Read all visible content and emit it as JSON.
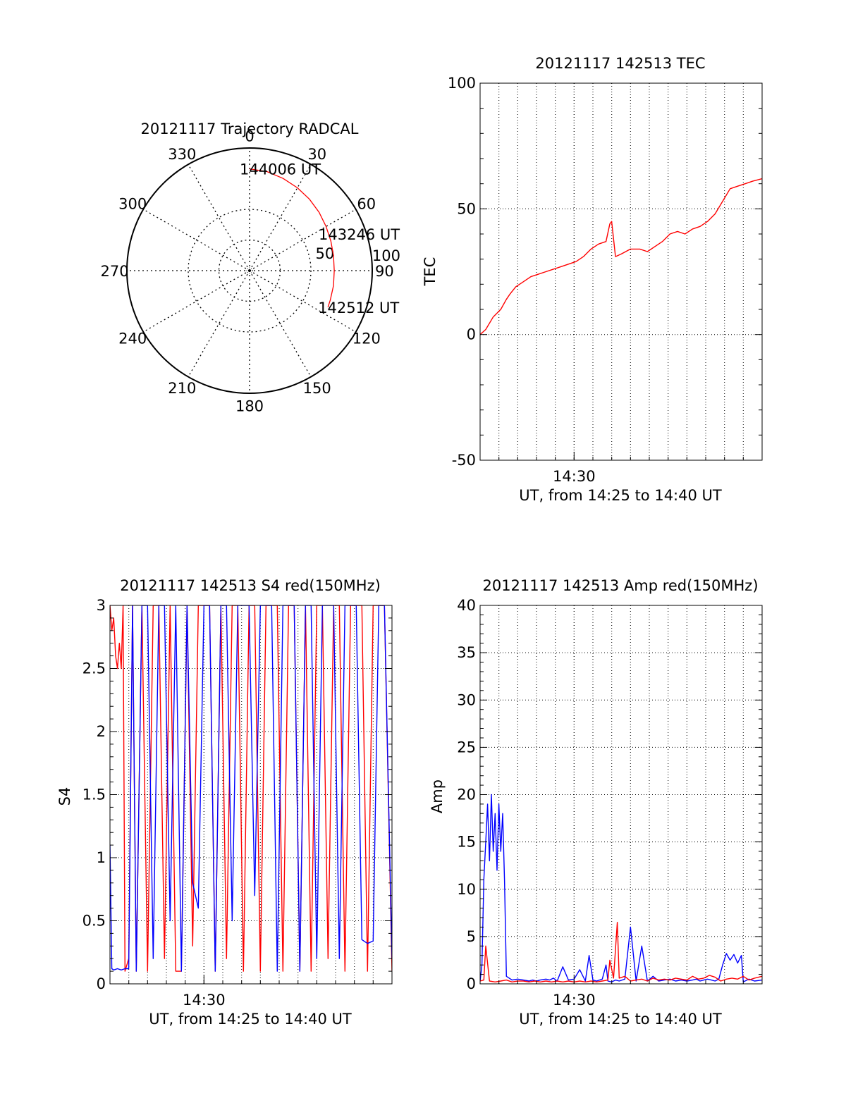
{
  "colors": {
    "primary": "#ff0000",
    "secondary": "#0000ff",
    "axis": "#000000",
    "grid": "#000000"
  },
  "chart_data": [
    {
      "type": "polar",
      "title": "20121117 Trajectory RADCAL",
      "angle_labels": [
        "0",
        "30",
        "60",
        "90",
        "120",
        "150",
        "180",
        "210",
        "240",
        "270",
        "300",
        "330"
      ],
      "radial_ticks": [
        {
          "value": 50,
          "label": "50"
        },
        {
          "value": 100,
          "label": "100"
        }
      ],
      "rlim": [
        0,
        100
      ],
      "trajectory": {
        "color": "#ff0000",
        "azimuth": [
          0,
          10,
          20,
          30,
          40,
          50,
          60,
          70,
          80,
          90,
          100,
          110,
          115
        ],
        "radius": [
          83,
          82,
          80,
          78,
          76,
          74,
          72,
          70.5,
          69.5,
          69,
          69.5,
          70,
          70.5
        ]
      },
      "time_labels": [
        {
          "text": "144006 UT",
          "azimuth": 0,
          "radius": 83
        },
        {
          "text": "143246 UT",
          "azimuth": 65,
          "radius": 71
        },
        {
          "text": "142512 UT",
          "azimuth": 115,
          "radius": 70.5
        }
      ]
    },
    {
      "type": "line",
      "title": "20121117 142513 TEC",
      "xlabel": "UT, from 14:25 to 14:40 UT",
      "ylabel": "TEC",
      "xlim": [
        14.4167,
        14.6667
      ],
      "ylim": [
        -50,
        100
      ],
      "yticks": [
        -50,
        0,
        50,
        100
      ],
      "xticks": [
        {
          "value": 14.5,
          "label": "14:30"
        }
      ],
      "grid": true,
      "series": [
        {
          "color": "#ff0000",
          "x": [
            14.4167,
            14.4217,
            14.4283,
            14.435,
            14.44,
            14.443,
            14.4483,
            14.455,
            14.4617,
            14.4683,
            14.475,
            14.4817,
            14.4883,
            14.495,
            14.5017,
            14.5083,
            14.515,
            14.5217,
            14.5283,
            14.5317,
            14.5333,
            14.5367,
            14.5417,
            14.55,
            14.5583,
            14.565,
            14.5717,
            14.5783,
            14.585,
            14.5917,
            14.5983,
            14.605,
            14.6117,
            14.6183,
            14.625,
            14.6317,
            14.6383,
            14.645,
            14.6517,
            14.6583,
            14.6667
          ],
          "y": [
            0,
            2,
            7,
            10,
            14,
            16,
            19,
            21,
            23,
            24,
            25,
            26,
            27,
            28,
            29,
            31,
            34,
            36,
            37,
            44,
            45,
            31,
            32,
            34,
            34,
            33,
            35,
            37,
            40,
            41,
            40,
            42,
            43,
            45,
            48,
            53,
            58,
            59,
            60,
            61,
            62
          ]
        }
      ]
    },
    {
      "type": "line",
      "title": "20121117 142513 S4 red(150MHz)",
      "xlabel": "UT, from 14:25 to 14:40 UT",
      "ylabel": "S4",
      "xlim": [
        14.4167,
        14.6667
      ],
      "ylim": [
        0,
        3
      ],
      "yticks": [
        0,
        0.5,
        1,
        1.5,
        2,
        2.5,
        3
      ],
      "xticks": [
        {
          "value": 14.5,
          "label": "14:30"
        }
      ],
      "grid": true,
      "series": [
        {
          "color": "#ff0000",
          "x": [
            14.4167,
            14.4183,
            14.42,
            14.4217,
            14.4233,
            14.425,
            14.4267,
            14.4283,
            14.43,
            14.4333,
            14.4367,
            14.44,
            14.445,
            14.45,
            14.455,
            14.46,
            14.465,
            14.47,
            14.475,
            14.48,
            14.485,
            14.49,
            14.495,
            14.5,
            14.505,
            14.51,
            14.515,
            14.52,
            14.525,
            14.53,
            14.535,
            14.54,
            14.545,
            14.55,
            14.555,
            14.56,
            14.565,
            14.57,
            14.575,
            14.58,
            14.585,
            14.59,
            14.595,
            14.6,
            14.605,
            14.61,
            14.615,
            14.62,
            14.625,
            14.63,
            14.635,
            14.64,
            14.645,
            14.65,
            14.655,
            14.66,
            14.6667
          ],
          "y": [
            3,
            2.8,
            2.9,
            2.6,
            2.5,
            2.7,
            2.5,
            3,
            0.1,
            0.2,
            3,
            0.1,
            3,
            0.1,
            3,
            3,
            0.2,
            3,
            0.1,
            0.1,
            3,
            0.3,
            3,
            3,
            3,
            0.1,
            3,
            0.2,
            3,
            3,
            0.1,
            3,
            3,
            0.1,
            3,
            3,
            3,
            0.1,
            3,
            3,
            0.1,
            3,
            0.1,
            3,
            3,
            0.2,
            3,
            3,
            0.1,
            3,
            3,
            3,
            0.1,
            3,
            3,
            3,
            0.1
          ]
        },
        {
          "color": "#0000ff",
          "x": [
            14.4167,
            14.4183,
            14.42,
            14.4233,
            14.4267,
            14.43,
            14.4333,
            14.4367,
            14.44,
            14.445,
            14.45,
            14.455,
            14.46,
            14.465,
            14.47,
            14.475,
            14.48,
            14.485,
            14.49,
            14.495,
            14.5,
            14.505,
            14.51,
            14.515,
            14.52,
            14.525,
            14.53,
            14.535,
            14.54,
            14.545,
            14.55,
            14.555,
            14.56,
            14.565,
            14.57,
            14.575,
            14.58,
            14.585,
            14.59,
            14.595,
            14.6,
            14.605,
            14.61,
            14.615,
            14.62,
            14.625,
            14.63,
            14.635,
            14.64,
            14.645,
            14.65,
            14.655,
            14.66,
            14.6667
          ],
          "y": [
            1.1,
            0.12,
            0.11,
            0.12,
            0.11,
            0.12,
            0.12,
            3,
            0.1,
            3,
            3,
            0.2,
            3,
            3,
            0.5,
            3,
            0.1,
            3,
            0.8,
            0.6,
            3,
            3,
            0.1,
            3,
            3,
            0.5,
            3,
            3,
            3,
            0.7,
            3,
            3,
            3,
            0.1,
            3,
            3,
            3,
            0.1,
            3,
            3,
            0.2,
            3,
            3,
            3,
            0.2,
            3,
            3,
            3,
            0.35,
            0.32,
            0.34,
            3,
            3,
            0.2
          ]
        }
      ]
    },
    {
      "type": "line",
      "title": "20121117 142513 Amp red(150MHz)",
      "xlabel": "UT, from 14:25 to 14:40 UT",
      "ylabel": "Amp",
      "xlim": [
        14.4167,
        14.6667
      ],
      "ylim": [
        0,
        40
      ],
      "yticks": [
        0,
        5,
        10,
        15,
        20,
        25,
        30,
        35,
        40
      ],
      "xticks": [
        {
          "value": 14.5,
          "label": "14:30"
        }
      ],
      "grid": true,
      "series": [
        {
          "color": "#0000ff",
          "x": [
            14.4167,
            14.4183,
            14.42,
            14.4217,
            14.4233,
            14.425,
            14.4267,
            14.4283,
            14.43,
            14.4317,
            14.4333,
            14.435,
            14.4367,
            14.4383,
            14.44,
            14.445,
            14.45,
            14.455,
            14.46,
            14.4633,
            14.4667,
            14.47,
            14.475,
            14.4783,
            14.4817,
            14.485,
            14.49,
            14.495,
            14.5,
            14.505,
            14.51,
            14.5133,
            14.5167,
            14.52,
            14.525,
            14.5283,
            14.53,
            14.5333,
            14.5367,
            14.54,
            14.545,
            14.55,
            14.555,
            14.56,
            14.565,
            14.57,
            14.575,
            14.58,
            14.585,
            14.59,
            14.595,
            14.6,
            14.605,
            14.6083,
            14.6117,
            14.615,
            14.6183,
            14.6217,
            14.625,
            14.6283,
            14.6317,
            14.635,
            14.6383,
            14.6417,
            14.645,
            14.6483,
            14.65,
            14.655,
            14.66,
            14.6667
          ],
          "y": [
            0.3,
            2,
            11,
            15,
            19,
            13,
            20,
            14,
            18,
            12,
            19,
            14,
            18,
            11,
            0.8,
            0.4,
            0.5,
            0.4,
            0.3,
            0.4,
            0.3,
            0.4,
            0.5,
            0.4,
            0.6,
            0.3,
            1.8,
            0.4,
            0.5,
            1.5,
            0.3,
            3,
            0.4,
            0.3,
            0.5,
            2,
            0.3,
            0.2,
            0.4,
            0.3,
            0.5,
            6,
            0.3,
            4,
            0.3,
            0.8,
            0.3,
            0.4,
            0.5,
            0.3,
            0.4,
            0.3,
            0.4,
            0.5,
            0.3,
            0.4,
            0.5,
            0.4,
            0.3,
            0.5,
            2,
            3.2,
            2.5,
            3.1,
            2.2,
            3,
            0.2,
            0.5,
            0.3,
            0.4
          ]
        },
        {
          "color": "#ff0000",
          "x": [
            14.4167,
            14.42,
            14.4217,
            14.425,
            14.43,
            14.435,
            14.44,
            14.445,
            14.45,
            14.455,
            14.46,
            14.465,
            14.47,
            14.475,
            14.48,
            14.485,
            14.49,
            14.495,
            14.5,
            14.505,
            14.51,
            14.515,
            14.52,
            14.525,
            14.53,
            14.5317,
            14.535,
            14.5383,
            14.54,
            14.545,
            14.55,
            14.555,
            14.56,
            14.565,
            14.57,
            14.575,
            14.58,
            14.585,
            14.59,
            14.595,
            14.6,
            14.605,
            14.61,
            14.615,
            14.62,
            14.625,
            14.63,
            14.635,
            14.64,
            14.645,
            14.65,
            14.655,
            14.66,
            14.6667
          ],
          "y": [
            0.3,
            0.4,
            4,
            0.3,
            0.2,
            0.3,
            0.4,
            0.2,
            0.3,
            0.3,
            0.2,
            0.3,
            0.2,
            0.3,
            0.2,
            0.3,
            0.2,
            0.3,
            0.2,
            0.3,
            0.2,
            0.3,
            0.2,
            0.3,
            0.4,
            2.5,
            0.6,
            6.5,
            0.6,
            0.8,
            0.3,
            0.4,
            0.5,
            0.3,
            0.6,
            0.4,
            0.5,
            0.4,
            0.6,
            0.5,
            0.4,
            0.8,
            0.5,
            0.6,
            0.9,
            0.7,
            0.3,
            0.5,
            0.6,
            0.5,
            0.8,
            0.4,
            0.6,
            0.8
          ]
        }
      ]
    }
  ]
}
